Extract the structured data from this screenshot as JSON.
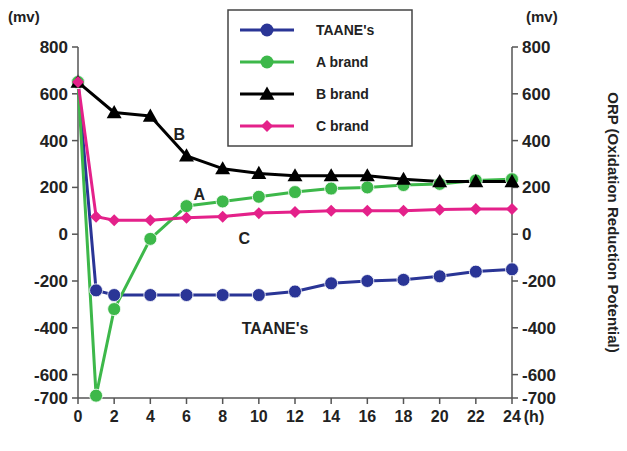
{
  "chart_data": {
    "type": "line",
    "ylabel": "(mv)",
    "y2label_unit": "(mv)",
    "y2label": "ORP (Oxidation Reduction Potential)",
    "xlabel": "(h)",
    "xlim": [
      0,
      24
    ],
    "xticks": [
      0,
      2,
      4,
      6,
      8,
      10,
      12,
      14,
      16,
      18,
      20,
      22,
      24
    ],
    "ylim": [
      -700,
      800
    ],
    "yticks": [
      -700,
      -600,
      -400,
      -200,
      0,
      200,
      400,
      600,
      800
    ],
    "y2lim": [
      -700,
      800
    ],
    "y2ticks": [
      -700,
      -600,
      -400,
      -200,
      0,
      200,
      400,
      600,
      800
    ],
    "grid": false,
    "legend": "top",
    "series": [
      {
        "name": "TAANE's",
        "color": "#2a3596",
        "marker": "circle",
        "x": [
          0,
          1,
          2,
          4,
          6,
          8,
          10,
          12,
          14,
          16,
          18,
          20,
          22,
          24
        ],
        "values": [
          650,
          -240,
          -260,
          -260,
          -260,
          -260,
          -260,
          -245,
          -210,
          -200,
          -195,
          -180,
          -160,
          -150
        ]
      },
      {
        "name": "A brand",
        "color": "#3db84a",
        "marker": "circle",
        "x": [
          0,
          1,
          2,
          4,
          6,
          8,
          10,
          12,
          14,
          16,
          18,
          20,
          22,
          24
        ],
        "values": [
          650,
          -690,
          -320,
          -20,
          120,
          140,
          160,
          180,
          195,
          200,
          210,
          215,
          230,
          235
        ]
      },
      {
        "name": "B brand",
        "color": "#000000",
        "marker": "triangle",
        "x": [
          0,
          2,
          4,
          6,
          8,
          10,
          12,
          14,
          16,
          18,
          20,
          22,
          24
        ],
        "values": [
          650,
          520,
          505,
          335,
          280,
          260,
          250,
          250,
          250,
          235,
          225,
          225,
          225
        ]
      },
      {
        "name": "C brand",
        "color": "#e4218a",
        "marker": "diamond",
        "x": [
          0,
          1,
          2,
          4,
          6,
          8,
          10,
          12,
          14,
          16,
          18,
          20,
          22,
          24
        ],
        "values": [
          650,
          75,
          60,
          60,
          70,
          75,
          90,
          95,
          100,
          100,
          100,
          105,
          108,
          108
        ]
      }
    ],
    "annotations": [
      {
        "text": "B",
        "x": 5.6,
        "y": 430
      },
      {
        "text": "A",
        "x": 6.7,
        "y": 170
      },
      {
        "text": "C",
        "x": 9.2,
        "y": -15
      },
      {
        "text": "TAANE's",
        "x": 10.9,
        "y": -400
      }
    ]
  }
}
